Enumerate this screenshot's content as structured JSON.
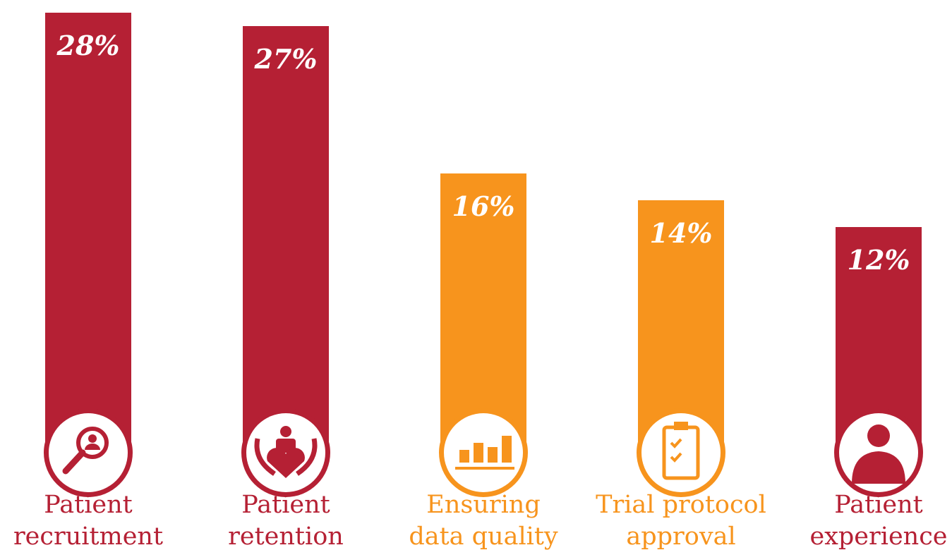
{
  "chart_data": {
    "type": "bar",
    "categories": [
      [
        "Patient",
        "recruitment"
      ],
      [
        "Patient",
        "retention"
      ],
      [
        "Ensuring",
        "data quality"
      ],
      [
        "Trial protocol",
        "approval"
      ],
      [
        "Patient",
        "experience"
      ]
    ],
    "values": [
      28,
      27,
      16,
      14,
      12
    ],
    "value_labels": [
      "28%",
      "27%",
      "16%",
      "14%",
      "12%"
    ],
    "colors": [
      "#b52034",
      "#b52034",
      "#f7941d",
      "#f7941d",
      "#b52034"
    ]
  }
}
